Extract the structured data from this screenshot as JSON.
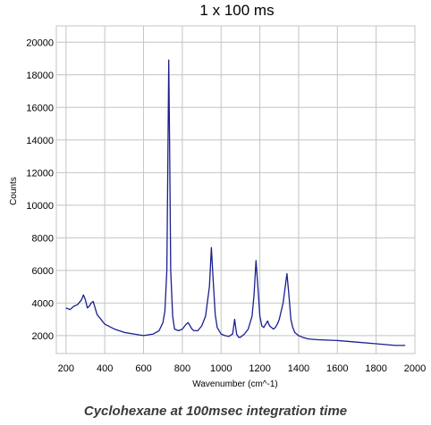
{
  "chart_data": {
    "type": "line",
    "title": "1 x 100 ms",
    "xlabel": "Wavenumber (cm^-1)",
    "ylabel": "Counts",
    "caption": "Cyclohexane at 100msec integration time",
    "xlim": [
      150,
      2000
    ],
    "ylim": [
      900,
      21000
    ],
    "xticks": [
      200,
      400,
      600,
      800,
      1000,
      1200,
      1400,
      1600,
      1800,
      2000
    ],
    "yticks": [
      2000,
      4000,
      6000,
      8000,
      10000,
      12000,
      14000,
      16000,
      18000,
      20000
    ],
    "grid": true,
    "series": [
      {
        "color": "#1a1f8f",
        "x": [
          200,
          220,
          240,
          260,
          280,
          290,
          300,
          310,
          320,
          330,
          340,
          350,
          360,
          380,
          400,
          450,
          500,
          550,
          600,
          650,
          680,
          700,
          710,
          720,
          725,
          730,
          735,
          740,
          750,
          760,
          780,
          800,
          820,
          830,
          840,
          850,
          860,
          880,
          900,
          920,
          940,
          950,
          960,
          970,
          980,
          1000,
          1020,
          1040,
          1060,
          1070,
          1080,
          1090,
          1100,
          1120,
          1140,
          1160,
          1170,
          1180,
          1190,
          1200,
          1210,
          1220,
          1240,
          1250,
          1260,
          1270,
          1280,
          1290,
          1300,
          1320,
          1340,
          1350,
          1360,
          1370,
          1380,
          1390,
          1400,
          1420,
          1450,
          1500,
          1600,
          1700,
          1800,
          1900,
          1950
        ],
        "y": [
          3700,
          3600,
          3800,
          3900,
          4200,
          4500,
          4200,
          3700,
          3800,
          4000,
          4100,
          3700,
          3300,
          3000,
          2700,
          2400,
          2200,
          2100,
          2000,
          2100,
          2300,
          2800,
          3500,
          6000,
          12000,
          18900,
          13000,
          6000,
          3200,
          2400,
          2300,
          2400,
          2700,
          2800,
          2600,
          2400,
          2300,
          2300,
          2600,
          3200,
          5000,
          7400,
          5200,
          3300,
          2500,
          2100,
          2000,
          1950,
          2100,
          3000,
          2100,
          1900,
          1900,
          2100,
          2400,
          3200,
          4500,
          6600,
          5000,
          3200,
          2600,
          2500,
          2900,
          2600,
          2500,
          2400,
          2500,
          2700,
          3000,
          4000,
          5800,
          4500,
          3000,
          2500,
          2200,
          2100,
          2000,
          1900,
          1800,
          1750,
          1700,
          1600,
          1500,
          1400,
          1400
        ]
      }
    ]
  }
}
